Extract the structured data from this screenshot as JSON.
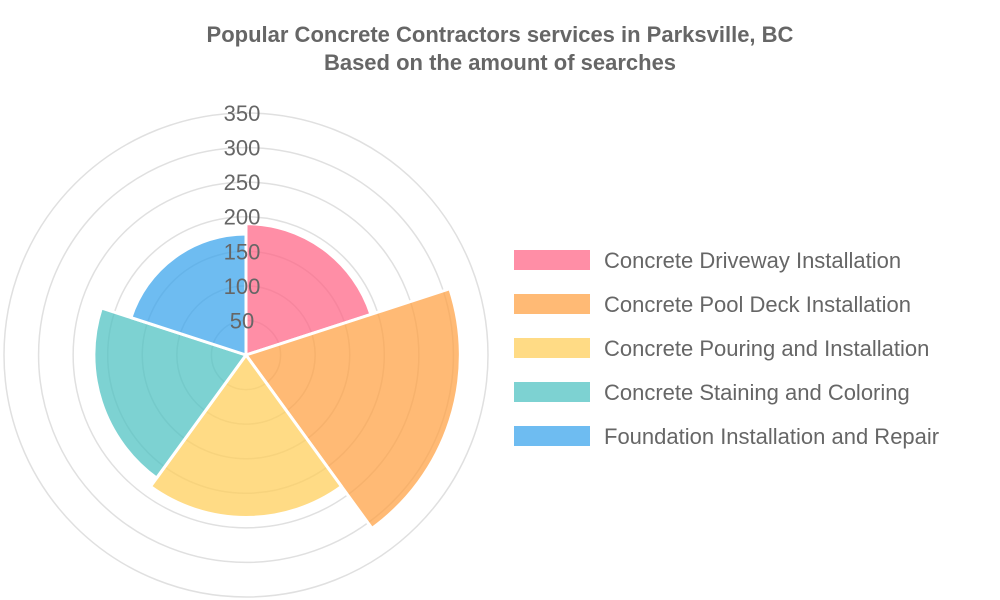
{
  "chart_data": {
    "type": "polarArea",
    "title": "Popular Concrete Contractors services in Parksville, BC",
    "subtitle": "Based on the amount of searches",
    "categories": [
      "Concrete Driveway Installation",
      "Concrete Pool Deck Installation",
      "Concrete Pouring and Installation",
      "Concrete Staining and Coloring",
      "Foundation Installation and Repair"
    ],
    "values": [
      190,
      310,
      235,
      220,
      175
    ],
    "colors": [
      "#ff6384",
      "#ff9f40",
      "#ffcd56",
      "#4bc0c0",
      "#36a2eb"
    ],
    "rlim": [
      0,
      350
    ],
    "ticks": [
      {
        "value": 50,
        "label": "50"
      },
      {
        "value": 100,
        "label": "100"
      },
      {
        "value": 150,
        "label": "150"
      },
      {
        "value": 200,
        "label": "200"
      },
      {
        "value": 250,
        "label": "250"
      },
      {
        "value": 300,
        "label": "300"
      },
      {
        "value": 350,
        "label": "350"
      }
    ],
    "grid": true,
    "legend": "right"
  }
}
